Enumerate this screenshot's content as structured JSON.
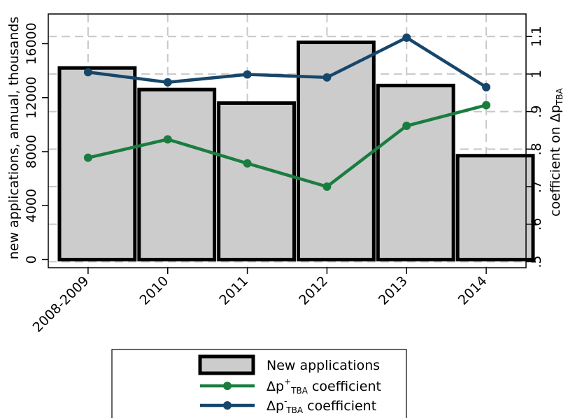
{
  "chart_data": {
    "type": "bar",
    "categories": [
      "2008-2009",
      "2010",
      "2011",
      "2012",
      "2013",
      "2014"
    ],
    "bars": {
      "name": "New applications",
      "values": [
        14200,
        12600,
        11600,
        16100,
        12900,
        7700
      ],
      "color": "#cccccc",
      "stroke": "#000000"
    },
    "series": [
      {
        "name_main": "Δp",
        "name_sup": "+",
        "name_sub": "TBA",
        "name_tail": " coefficient",
        "axis": "right",
        "color": "#1a7d3f",
        "values": [
          0.777,
          0.826,
          0.762,
          0.7,
          0.862,
          0.917
        ]
      },
      {
        "name_main": "Δp",
        "name_sup": "-",
        "name_sub": "TBA",
        "name_tail": " coefficient",
        "axis": "right",
        "color": "#17466b",
        "values": [
          1.005,
          0.978,
          0.999,
          0.991,
          1.097,
          0.965
        ]
      }
    ],
    "left_axis": {
      "label": "new applications, annual, thousands",
      "ticks": [
        0,
        4000,
        8000,
        12000,
        16000
      ],
      "tick_labels": [
        "0",
        "4000",
        "8000",
        "12000",
        "16000"
      ],
      "range": [
        -600,
        18200
      ]
    },
    "right_axis": {
      "label_main": "coefficient on Δp",
      "label_sub": "TBA",
      "ticks": [
        0.5,
        0.6,
        0.7,
        0.8,
        0.9,
        1.0,
        1.1
      ],
      "tick_labels": [
        ".5",
        ".6",
        ".7",
        ".8",
        ".9",
        "1",
        "1.1"
      ],
      "range": [
        0.484,
        1.16
      ]
    },
    "grid": true,
    "legend_position": "bottom"
  }
}
